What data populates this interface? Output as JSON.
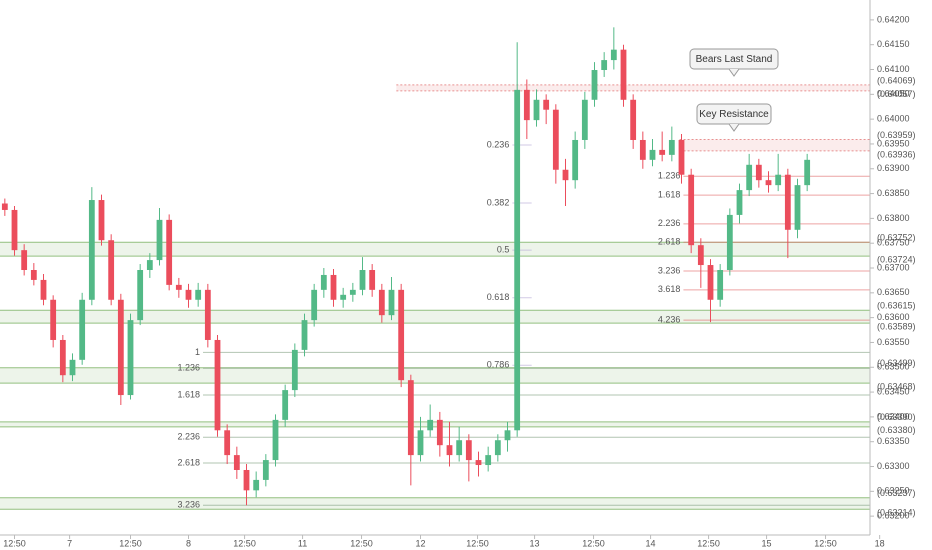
{
  "chart_data": {
    "type": "candlestick",
    "xlim": [
      -0.5,
      89.5
    ],
    "ylim": [
      0.63162,
      0.6423
    ],
    "up_color": "#53b987",
    "down_color": "#eb4d5c",
    "xticks": [
      {
        "value": 1,
        "label": "12:50"
      },
      {
        "value": 6.7,
        "label": "7"
      },
      {
        "value": 13,
        "label": "12:50"
      },
      {
        "value": 19,
        "label": "8"
      },
      {
        "value": 24.8,
        "label": "12:50"
      },
      {
        "value": 30.8,
        "label": "11"
      },
      {
        "value": 36.9,
        "label": "12:50"
      },
      {
        "value": 43,
        "label": "12"
      },
      {
        "value": 48.9,
        "label": "12:50"
      },
      {
        "value": 54.8,
        "label": "13"
      },
      {
        "value": 60.9,
        "label": "12:50"
      },
      {
        "value": 66.8,
        "label": "14"
      },
      {
        "value": 72.8,
        "label": "12:50"
      },
      {
        "value": 78.8,
        "label": "15"
      },
      {
        "value": 84.9,
        "label": "12:50"
      },
      {
        "value": 90.5,
        "label": "18"
      }
    ],
    "yticks": [
      {
        "value": 0.632,
        "label": "0.63200"
      },
      {
        "value": 0.6325,
        "label": "0.63250"
      },
      {
        "value": 0.633,
        "label": "0.63300"
      },
      {
        "value": 0.6335,
        "label": "0.63350"
      },
      {
        "value": 0.634,
        "label": "0.63400"
      },
      {
        "value": 0.6345,
        "label": "0.63450"
      },
      {
        "value": 0.635,
        "label": "0.63500"
      },
      {
        "value": 0.6355,
        "label": "0.63550"
      },
      {
        "value": 0.636,
        "label": "0.63600"
      },
      {
        "value": 0.6365,
        "label": "0.63650"
      },
      {
        "value": 0.637,
        "label": "0.63700"
      },
      {
        "value": 0.6375,
        "label": "0.63750"
      },
      {
        "value": 0.638,
        "label": "0.63800"
      },
      {
        "value": 0.6385,
        "label": "0.63850"
      },
      {
        "value": 0.639,
        "label": "0.63900"
      },
      {
        "value": 0.6395,
        "label": "0.63950"
      },
      {
        "value": 0.64,
        "label": "0.64000"
      },
      {
        "value": 0.6405,
        "label": "0.64050"
      },
      {
        "value": 0.641,
        "label": "0.64100"
      },
      {
        "value": 0.6415,
        "label": "0.64150"
      },
      {
        "value": 0.642,
        "label": "0.64200"
      }
    ],
    "candles": {
      "open": [
        0.6383,
        0.63817,
        0.63736,
        0.63696,
        0.63676,
        0.63636,
        0.63555,
        0.63484,
        0.63515,
        0.63636,
        0.63837,
        0.63756,
        0.63636,
        0.63444,
        0.63595,
        0.63696,
        0.63716,
        0.63797,
        0.63666,
        0.63656,
        0.63636,
        0.63656,
        0.63555,
        0.63373,
        0.63323,
        0.63293,
        0.63252,
        0.63273,
        0.63313,
        0.63394,
        0.63454,
        0.63535,
        0.63595,
        0.63656,
        0.63686,
        0.63636,
        0.63646,
        0.63656,
        0.63696,
        0.63656,
        0.63605,
        0.63656,
        0.63474,
        0.63323,
        0.63373,
        0.63394,
        0.63343,
        0.63323,
        0.63353,
        0.63313,
        0.63303,
        0.63323,
        0.63353,
        0.63373,
        0.64059,
        0.63998,
        0.64039,
        0.64019,
        0.63898,
        0.63877,
        0.63958,
        0.64039,
        0.64099,
        0.64119,
        0.6414,
        0.64039,
        0.63958,
        0.63918,
        0.63938,
        0.63928,
        0.63958,
        0.63888,
        0.63746,
        0.63706,
        0.63636,
        0.63696,
        0.63807,
        0.63857,
        0.63908,
        0.63877,
        0.63867,
        0.63888,
        0.63777,
        0.63867
      ],
      "high": [
        0.6384,
        0.63825,
        0.63748,
        0.6371,
        0.63688,
        0.63645,
        0.63565,
        0.63528,
        0.6365,
        0.63863,
        0.63848,
        0.63768,
        0.63648,
        0.63608,
        0.63708,
        0.6373,
        0.63821,
        0.63808,
        0.6368,
        0.63668,
        0.6367,
        0.63668,
        0.63565,
        0.63385,
        0.6334,
        0.63305,
        0.6329,
        0.63325,
        0.63405,
        0.63465,
        0.63548,
        0.63608,
        0.63668,
        0.637,
        0.63698,
        0.6366,
        0.6367,
        0.63722,
        0.63708,
        0.63668,
        0.63682,
        0.63668,
        0.63485,
        0.634,
        0.63425,
        0.6341,
        0.6339,
        0.6338,
        0.63365,
        0.6333,
        0.6334,
        0.63365,
        0.6339,
        0.64155,
        0.6408,
        0.6406,
        0.6405,
        0.6403,
        0.6392,
        0.63975,
        0.64055,
        0.64115,
        0.64135,
        0.64185,
        0.6415,
        0.6405,
        0.63975,
        0.6396,
        0.63975,
        0.63985,
        0.6397,
        0.639,
        0.6376,
        0.63718,
        0.63708,
        0.6382,
        0.6387,
        0.6393,
        0.6392,
        0.63895,
        0.6393,
        0.639,
        0.6388,
        0.6393
      ],
      "low": [
        0.63805,
        0.63725,
        0.63685,
        0.63665,
        0.63625,
        0.6354,
        0.6347,
        0.63472,
        0.63505,
        0.63625,
        0.63745,
        0.63625,
        0.63424,
        0.63435,
        0.63585,
        0.6368,
        0.63705,
        0.63655,
        0.6364,
        0.6362,
        0.63622,
        0.6354,
        0.6336,
        0.63305,
        0.63275,
        0.63222,
        0.63238,
        0.6326,
        0.633,
        0.6338,
        0.6344,
        0.63522,
        0.63582,
        0.6364,
        0.63622,
        0.6362,
        0.63632,
        0.63645,
        0.63642,
        0.6359,
        0.63595,
        0.6346,
        0.63262,
        0.6331,
        0.6336,
        0.6332,
        0.633,
        0.6331,
        0.6327,
        0.6328,
        0.6329,
        0.6331,
        0.6333,
        0.6336,
        0.6396,
        0.63985,
        0.6399,
        0.6387,
        0.63825,
        0.6386,
        0.6394,
        0.64025,
        0.64085,
        0.641,
        0.64025,
        0.6394,
        0.639,
        0.63905,
        0.63915,
        0.63915,
        0.6387,
        0.6373,
        0.6366,
        0.63591,
        0.63622,
        0.63685,
        0.6379,
        0.63845,
        0.63862,
        0.63852,
        0.63855,
        0.6372,
        0.6376,
        0.63855
      ],
      "close": [
        0.63817,
        0.63736,
        0.63696,
        0.63676,
        0.63636,
        0.63555,
        0.63484,
        0.63515,
        0.63636,
        0.63837,
        0.63756,
        0.63636,
        0.63444,
        0.63595,
        0.63696,
        0.63716,
        0.63797,
        0.63666,
        0.63656,
        0.63636,
        0.63656,
        0.63555,
        0.63373,
        0.63323,
        0.63293,
        0.63252,
        0.63273,
        0.63313,
        0.63394,
        0.63454,
        0.63535,
        0.63595,
        0.63656,
        0.63686,
        0.63636,
        0.63646,
        0.63656,
        0.63696,
        0.63656,
        0.63605,
        0.63656,
        0.63474,
        0.63323,
        0.63373,
        0.63394,
        0.63343,
        0.63323,
        0.63353,
        0.63313,
        0.63303,
        0.63323,
        0.63353,
        0.63373,
        0.64059,
        0.63998,
        0.64039,
        0.64019,
        0.63898,
        0.63877,
        0.63958,
        0.64039,
        0.64099,
        0.64119,
        0.6414,
        0.64039,
        0.63958,
        0.63918,
        0.63938,
        0.63928,
        0.63958,
        0.63888,
        0.63746,
        0.63706,
        0.63636,
        0.63696,
        0.63807,
        0.63857,
        0.63908,
        0.63877,
        0.63867,
        0.63888,
        0.63777,
        0.63867,
        0.63918
      ]
    },
    "zones": [
      {
        "top": {
          "value": 0.64069,
          "label": "(0.64069)"
        },
        "bottom": {
          "value": 0.64057,
          "label": "(0.64057)"
        },
        "color": "#e06666",
        "from": 40.5
      },
      {
        "top": {
          "value": 0.63959,
          "label": "(0.63959)"
        },
        "bottom": {
          "value": 0.63936,
          "label": "(0.63936)"
        },
        "color": "#e06666",
        "from": 69.8
      },
      {
        "top": {
          "value": 0.63752,
          "label": "(0.63752)"
        },
        "bottom": {
          "value": 0.63724,
          "label": "(0.63724)"
        },
        "color": "#6aa84f",
        "from": -0.5
      },
      {
        "top": {
          "value": 0.63615,
          "label": "(0.63615)"
        },
        "bottom": {
          "value": 0.63589,
          "label": "(0.63589)"
        },
        "color": "#6aa84f",
        "from": -0.5
      },
      {
        "top": {
          "value": 0.63499,
          "label": "(0.63499)"
        },
        "bottom": {
          "value": 0.63468,
          "label": "(0.63468)"
        },
        "color": "#6aa84f",
        "from": -0.5
      },
      {
        "top": {
          "value": 0.6339,
          "label": "(0.63390)"
        },
        "bottom": {
          "value": 0.6338,
          "label": "(0.63380)"
        },
        "color": "#6aa84f",
        "from": -0.5
      },
      {
        "top": {
          "value": 0.63237,
          "label": "(0.63237)"
        },
        "bottom": {
          "value": 0.63214,
          "label": "(0.63214)"
        },
        "color": "#6aa84f",
        "from": -0.5
      }
    ],
    "fibs": [
      {
        "color": "#7f9f7f",
        "from": 20.5,
        "to": 89.5,
        "levels": [
          1,
          1.236,
          1.618,
          2.236,
          2.618,
          3.236
        ],
        "prices": [
          0.6353,
          0.63498,
          0.63444,
          0.63359,
          0.63307,
          0.63222
        ]
      },
      {
        "color": "#b4a7d6",
        "from": 52.5,
        "to": 54.5,
        "levels": [
          0.236,
          0.382,
          0.5,
          0.618,
          0.786
        ],
        "prices": [
          0.63948,
          0.63831,
          0.63736,
          0.6364,
          0.63504
        ]
      },
      {
        "color": "#e06666",
        "from": 70.2,
        "to": 89.5,
        "levels": [
          1.236,
          1.618,
          2.236,
          2.618,
          3.236,
          3.618,
          4.236
        ],
        "prices": [
          0.63885,
          0.63847,
          0.63789,
          0.63752,
          0.63694,
          0.63656,
          0.63595
        ]
      }
    ],
    "annotations": [
      "Bears Last Stand",
      "Key Resistance"
    ]
  }
}
